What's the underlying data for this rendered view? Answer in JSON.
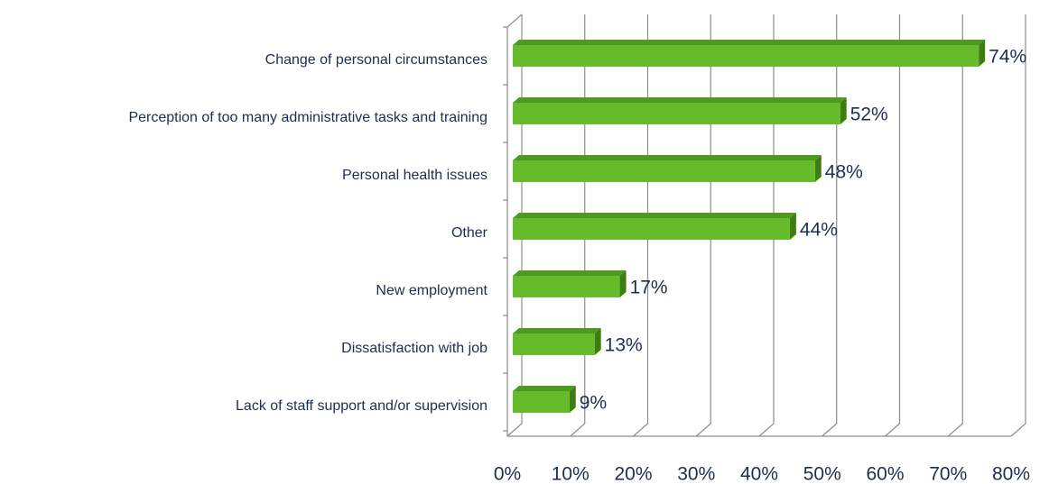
{
  "chart_data": {
    "type": "bar",
    "orientation": "horizontal",
    "categories": [
      "Change of personal circumstances",
      "Perception of too many administrative tasks and training",
      "Personal health issues",
      "Other",
      "New employment",
      "Dissatisfaction with job",
      "Lack of staff support and/or supervision"
    ],
    "values": [
      74,
      52,
      48,
      44,
      17,
      13,
      9
    ],
    "value_labels": [
      "74%",
      "52%",
      "48%",
      "44%",
      "17%",
      "13%",
      "9%"
    ],
    "color": "#66bb2a",
    "xlim": [
      0,
      80
    ],
    "xticks": [
      {
        "value": 0,
        "label": "0%"
      },
      {
        "value": 10,
        "label": "10%"
      },
      {
        "value": 20,
        "label": "20%"
      },
      {
        "value": 30,
        "label": "30%"
      },
      {
        "value": 40,
        "label": "40%"
      },
      {
        "value": 50,
        "label": "50%"
      },
      {
        "value": 60,
        "label": "60%"
      },
      {
        "value": 70,
        "label": "70%"
      },
      {
        "value": 80,
        "label": "80%"
      }
    ],
    "grid": true
  }
}
